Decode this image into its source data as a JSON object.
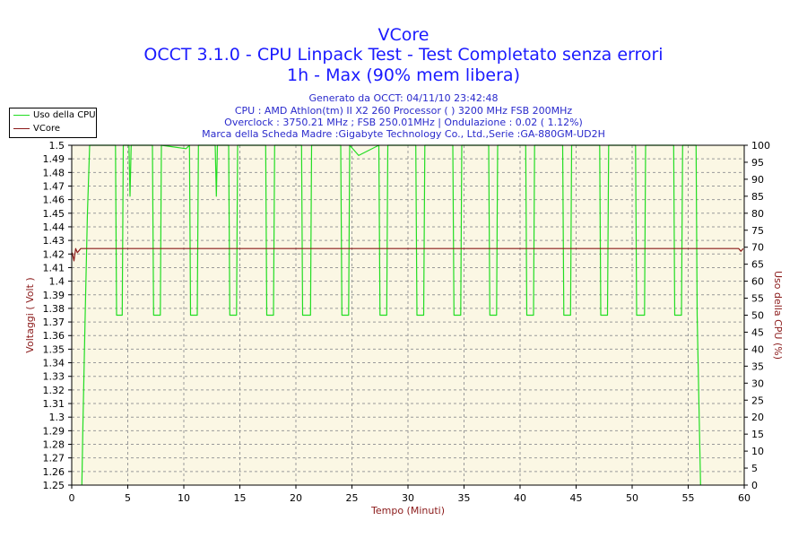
{
  "chart_data": {
    "type": "line",
    "title": "VCore",
    "subtitle_lines": [
      "OCCT 3.1.0 - CPU Linpack Test - Test Completato senza errori",
      "1h - Max (90% mem libera)"
    ],
    "info_lines": [
      "Generato da OCCT: 04/11/10 23:42:48",
      "CPU : AMD Athlon(tm) II X2 260 Processor (  ) 3200 MHz FSB 200MHz",
      "Overclock : 3750.21 MHz ; FSB 250.01MHz | Ondulazione : 0.02 ( 1.12%)",
      "Marca della Scheda Madre :Gigabyte Technology Co., Ltd.,Serie :GA-880GM-UD2H"
    ],
    "xlabel": "Tempo (Minuti)",
    "ylabel": "Voltaggi ( Volt )",
    "ylabel_right": "Uso della CPU (%)",
    "xlim": [
      0,
      60
    ],
    "ylim": [
      1.25,
      1.5
    ],
    "ylim_right": [
      0,
      100
    ],
    "x_ticks": [
      "0",
      "5",
      "10",
      "15",
      "20",
      "25",
      "30",
      "35",
      "40",
      "45",
      "50",
      "55",
      "60"
    ],
    "y_ticks": [
      "1.25",
      "1.26",
      "1.27",
      "1.28",
      "1.29",
      "1.3",
      "1.31",
      "1.32",
      "1.33",
      "1.34",
      "1.35",
      "1.36",
      "1.37",
      "1.38",
      "1.39",
      "1.4",
      "1.41",
      "1.42",
      "1.43",
      "1.44",
      "1.45",
      "1.46",
      "1.47",
      "1.48",
      "1.49",
      "1.5"
    ],
    "y_ticks_right": [
      "0",
      "5",
      "10",
      "15",
      "20",
      "25",
      "30",
      "35",
      "40",
      "45",
      "50",
      "55",
      "60",
      "65",
      "70",
      "75",
      "80",
      "85",
      "90",
      "95",
      "100"
    ],
    "grid": true,
    "legend_position": "top-left, outside plot",
    "series": [
      {
        "name": "Uso della CPU",
        "color": "#22dd22",
        "axis": "right",
        "points": [
          [
            0.9,
            0
          ],
          [
            1.0,
            18
          ],
          [
            1.2,
            50
          ],
          [
            1.4,
            80
          ],
          [
            1.6,
            100
          ],
          [
            3.9,
            100
          ],
          [
            4.0,
            50
          ],
          [
            4.5,
            50
          ],
          [
            4.6,
            100
          ],
          [
            5.1,
            100
          ],
          [
            5.2,
            85
          ],
          [
            5.3,
            100
          ],
          [
            7.2,
            100
          ],
          [
            7.3,
            50
          ],
          [
            7.9,
            50
          ],
          [
            8.0,
            100
          ],
          [
            10.2,
            99
          ],
          [
            10.5,
            100
          ],
          [
            10.6,
            50
          ],
          [
            11.2,
            50
          ],
          [
            11.3,
            100
          ],
          [
            12.8,
            100
          ],
          [
            12.9,
            85
          ],
          [
            13.0,
            100
          ],
          [
            14.0,
            100
          ],
          [
            14.1,
            50
          ],
          [
            14.7,
            50
          ],
          [
            14.8,
            100
          ],
          [
            17.3,
            100
          ],
          [
            17.4,
            50
          ],
          [
            18.0,
            50
          ],
          [
            18.1,
            100
          ],
          [
            20.5,
            100
          ],
          [
            20.6,
            50
          ],
          [
            21.3,
            50
          ],
          [
            21.4,
            100
          ],
          [
            24.0,
            100
          ],
          [
            24.1,
            50
          ],
          [
            24.7,
            50
          ],
          [
            24.8,
            100
          ],
          [
            25.6,
            97
          ],
          [
            27.4,
            100
          ],
          [
            27.5,
            50
          ],
          [
            28.1,
            50
          ],
          [
            28.2,
            100
          ],
          [
            30.7,
            100
          ],
          [
            30.8,
            50
          ],
          [
            31.4,
            50
          ],
          [
            31.5,
            100
          ],
          [
            34.0,
            100
          ],
          [
            34.1,
            50
          ],
          [
            34.7,
            50
          ],
          [
            34.8,
            100
          ],
          [
            37.2,
            100
          ],
          [
            37.3,
            50
          ],
          [
            37.9,
            50
          ],
          [
            38.0,
            100
          ],
          [
            40.5,
            100
          ],
          [
            40.6,
            50
          ],
          [
            41.2,
            50
          ],
          [
            41.3,
            100
          ],
          [
            43.8,
            100
          ],
          [
            43.9,
            50
          ],
          [
            44.5,
            50
          ],
          [
            44.6,
            100
          ],
          [
            47.1,
            100
          ],
          [
            47.2,
            50
          ],
          [
            47.8,
            50
          ],
          [
            47.9,
            100
          ],
          [
            50.3,
            100
          ],
          [
            50.4,
            50
          ],
          [
            51.1,
            50
          ],
          [
            51.2,
            100
          ],
          [
            53.7,
            100
          ],
          [
            53.8,
            50
          ],
          [
            54.4,
            50
          ],
          [
            54.5,
            100
          ],
          [
            55.7,
            100
          ],
          [
            55.8,
            50
          ],
          [
            56.1,
            0
          ]
        ]
      },
      {
        "name": "VCore",
        "color": "#8b1a1a",
        "axis": "left",
        "points": [
          [
            0.05,
            1.421
          ],
          [
            0.2,
            1.415
          ],
          [
            0.35,
            1.424
          ],
          [
            0.5,
            1.421
          ],
          [
            0.8,
            1.424
          ],
          [
            5,
            1.424
          ],
          [
            10,
            1.424
          ],
          [
            15,
            1.424
          ],
          [
            20,
            1.424
          ],
          [
            25,
            1.424
          ],
          [
            30,
            1.424
          ],
          [
            35,
            1.424
          ],
          [
            40,
            1.424
          ],
          [
            45,
            1.424
          ],
          [
            50,
            1.424
          ],
          [
            55,
            1.424
          ],
          [
            59.5,
            1.424
          ],
          [
            59.7,
            1.422
          ],
          [
            59.9,
            1.424
          ]
        ]
      }
    ]
  }
}
